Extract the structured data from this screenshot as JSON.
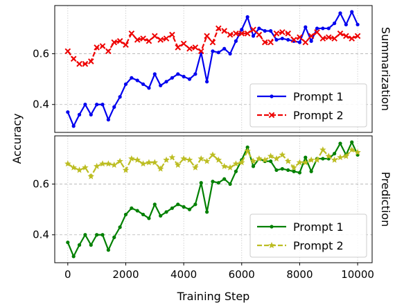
{
  "chart_data": {
    "type": "line",
    "xlabel": "Training Step",
    "ylabel": "Accuracy",
    "xlim": [
      -450,
      10500
    ],
    "ylim": [
      0.29,
      0.79
    ],
    "xticks": [
      0,
      2000,
      4000,
      6000,
      8000,
      10000
    ],
    "yticks": [
      0.4,
      0.6
    ],
    "ytick_labels": [
      "0.4",
      "0.6"
    ],
    "grid": true,
    "legend_position": "lower-right",
    "panels": [
      {
        "label": "Summarization",
        "series": [
          {
            "name": "Prompt 1",
            "color": "#0000ee",
            "marker": "dot",
            "linestyle": "solid",
            "x": [
              0,
              200,
              400,
              600,
              800,
              1000,
              1200,
              1400,
              1600,
              1800,
              2000,
              2200,
              2400,
              2600,
              2800,
              3000,
              3200,
              3400,
              3600,
              3800,
              4000,
              4200,
              4400,
              4600,
              4800,
              5000,
              5200,
              5400,
              5600,
              5800,
              6000,
              6200,
              6400,
              6600,
              6800,
              7000,
              7200,
              7400,
              7600,
              7800,
              8000,
              8200,
              8400,
              8600,
              8800,
              9000,
              9200,
              9400,
              9600,
              9800,
              10000
            ],
            "y": [
              0.37,
              0.315,
              0.36,
              0.4,
              0.36,
              0.4,
              0.4,
              0.34,
              0.39,
              0.43,
              0.48,
              0.505,
              0.495,
              0.48,
              0.465,
              0.52,
              0.475,
              0.49,
              0.505,
              0.52,
              0.51,
              0.5,
              0.52,
              0.605,
              0.49,
              0.61,
              0.605,
              0.62,
              0.6,
              0.65,
              0.695,
              0.745,
              0.67,
              0.7,
              0.69,
              0.69,
              0.655,
              0.66,
              0.655,
              0.65,
              0.645,
              0.705,
              0.65,
              0.7,
              0.7,
              0.7,
              0.72,
              0.76,
              0.715,
              0.765,
              0.715
            ]
          },
          {
            "name": "Prompt 2",
            "color": "#ee0000",
            "marker": "x",
            "linestyle": "dashed",
            "x": [
              0,
              200,
              400,
              600,
              800,
              1000,
              1200,
              1400,
              1600,
              1800,
              2000,
              2200,
              2400,
              2600,
              2800,
              3000,
              3200,
              3400,
              3600,
              3800,
              4000,
              4200,
              4400,
              4600,
              4800,
              5000,
              5200,
              5400,
              5600,
              5800,
              6000,
              6200,
              6400,
              6600,
              6800,
              7000,
              7200,
              7400,
              7600,
              7800,
              8000,
              8200,
              8400,
              8600,
              8800,
              9000,
              9200,
              9400,
              9600,
              9800,
              10000
            ],
            "y": [
              0.61,
              0.58,
              0.56,
              0.56,
              0.57,
              0.625,
              0.63,
              0.61,
              0.645,
              0.65,
              0.635,
              0.68,
              0.655,
              0.66,
              0.65,
              0.67,
              0.655,
              0.66,
              0.675,
              0.625,
              0.64,
              0.62,
              0.625,
              0.61,
              0.67,
              0.645,
              0.7,
              0.69,
              0.675,
              0.68,
              0.68,
              0.68,
              0.695,
              0.675,
              0.645,
              0.645,
              0.68,
              0.685,
              0.68,
              0.655,
              0.665,
              0.645,
              0.67,
              0.685,
              0.66,
              0.665,
              0.66,
              0.68,
              0.67,
              0.66,
              0.67
            ]
          }
        ]
      },
      {
        "label": "Prediction",
        "series": [
          {
            "name": "Prompt 1",
            "color": "#008000",
            "marker": "dot",
            "linestyle": "solid",
            "x": [
              0,
              200,
              400,
              600,
              800,
              1000,
              1200,
              1400,
              1600,
              1800,
              2000,
              2200,
              2400,
              2600,
              2800,
              3000,
              3200,
              3400,
              3600,
              3800,
              4000,
              4200,
              4400,
              4600,
              4800,
              5000,
              5200,
              5400,
              5600,
              5800,
              6000,
              6200,
              6400,
              6600,
              6800,
              7000,
              7200,
              7400,
              7600,
              7800,
              8000,
              8200,
              8400,
              8600,
              8800,
              9000,
              9200,
              9400,
              9600,
              9800,
              10000
            ],
            "y": [
              0.37,
              0.315,
              0.36,
              0.4,
              0.36,
              0.4,
              0.4,
              0.34,
              0.39,
              0.43,
              0.48,
              0.505,
              0.495,
              0.48,
              0.465,
              0.52,
              0.475,
              0.49,
              0.505,
              0.52,
              0.51,
              0.5,
              0.52,
              0.605,
              0.49,
              0.61,
              0.605,
              0.62,
              0.6,
              0.65,
              0.695,
              0.745,
              0.67,
              0.7,
              0.69,
              0.69,
              0.655,
              0.66,
              0.655,
              0.65,
              0.645,
              0.705,
              0.65,
              0.7,
              0.7,
              0.7,
              0.72,
              0.76,
              0.715,
              0.765,
              0.715
            ]
          },
          {
            "name": "Prompt 2",
            "color": "#bcbd22",
            "marker": "star",
            "linestyle": "dashed",
            "x": [
              0,
              200,
              400,
              600,
              800,
              1000,
              1200,
              1400,
              1600,
              1800,
              2000,
              2200,
              2400,
              2600,
              2800,
              3000,
              3200,
              3400,
              3600,
              3800,
              4000,
              4200,
              4400,
              4600,
              4800,
              5000,
              5200,
              5400,
              5600,
              5800,
              6000,
              6200,
              6400,
              6600,
              6800,
              7000,
              7200,
              7400,
              7600,
              7800,
              8000,
              8200,
              8400,
              8600,
              8800,
              9000,
              9200,
              9400,
              9600,
              9800,
              10000
            ],
            "y": [
              0.68,
              0.665,
              0.655,
              0.665,
              0.63,
              0.67,
              0.68,
              0.68,
              0.675,
              0.69,
              0.655,
              0.7,
              0.695,
              0.68,
              0.685,
              0.685,
              0.66,
              0.695,
              0.705,
              0.675,
              0.7,
              0.695,
              0.665,
              0.7,
              0.69,
              0.715,
              0.695,
              0.67,
              0.665,
              0.68,
              0.685,
              0.73,
              0.69,
              0.7,
              0.695,
              0.71,
              0.7,
              0.715,
              0.69,
              0.665,
              0.685,
              0.685,
              0.695,
              0.695,
              0.735,
              0.71,
              0.695,
              0.705,
              0.71,
              0.735,
              0.725
            ]
          }
        ]
      }
    ]
  }
}
